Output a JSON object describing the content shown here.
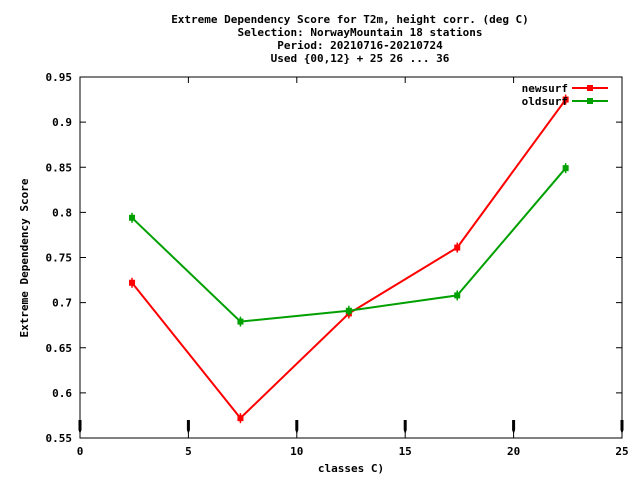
{
  "chart_data": {
    "type": "line",
    "title_lines": [
      "Extreme Dependency Score  for T2m, height corr. (deg C)",
      "Selection: NorwayMountain     18 stations",
      "Period: 20210716-20210724",
      "Used {00,12} + 25 26 ... 36"
    ],
    "xlabel": "classes C)",
    "ylabel": "Extreme Dependency Score",
    "xlim": [
      0,
      25
    ],
    "ylim": [
      0.55,
      0.95
    ],
    "x_ticks": [
      0,
      5,
      10,
      15,
      20,
      25
    ],
    "x_tick_labels": [
      "0",
      "5",
      "10",
      "15",
      "20",
      "25"
    ],
    "y_ticks": [
      0.55,
      0.6,
      0.65,
      0.7,
      0.75,
      0.8,
      0.85,
      0.9,
      0.95
    ],
    "y_tick_labels": [
      "0.55",
      "0.6",
      "0.65",
      "0.7",
      "0.75",
      "0.8",
      "0.85",
      "0.9",
      "0.95"
    ],
    "legend_position": "top-right",
    "grid": false,
    "series": [
      {
        "name": "newsurf",
        "color": "#ff0000",
        "x": [
          2.4,
          7.4,
          12.4,
          17.4,
          22.4
        ],
        "y": [
          0.722,
          0.572,
          0.688,
          0.761,
          0.925
        ]
      },
      {
        "name": "oldsurf",
        "color": "#00a000",
        "x": [
          2.4,
          7.4,
          12.4,
          17.4,
          22.4
        ],
        "y": [
          0.794,
          0.679,
          0.691,
          0.708,
          0.849
        ]
      }
    ]
  }
}
